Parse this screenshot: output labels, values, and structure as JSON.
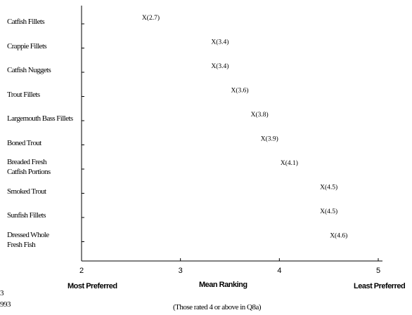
{
  "chart_data": {
    "type": "scatter",
    "categories": [
      "Catfish Fillets",
      "Crappie Fillets",
      "Catfish Nuggets",
      "Trout Fillets",
      "Largemouth Bass Fillets",
      "Boned Trout",
      "Breaded Fresh\nCatfish Portions",
      "Smoked Trout",
      "Sunfish Fillets",
      "Dressed Whole\nFresh Fish"
    ],
    "values": [
      2.7,
      3.4,
      3.4,
      3.6,
      3.8,
      3.9,
      4.1,
      4.5,
      4.5,
      4.6
    ],
    "point_labels": [
      "X(2.7)",
      "X(3.4)",
      "X(3.4)",
      "X(3.6)",
      "X(3.8)",
      "X(3.9)",
      "X(4.1)",
      "X(4.5)",
      "X(4.5)",
      "X(4.6)"
    ],
    "x_ticks": [
      "2",
      "3",
      "4",
      "5"
    ],
    "xlim": [
      2,
      5
    ],
    "xlabel": "Mean Ranking",
    "x_left_label": "Most Preferred",
    "x_right_label": "Least Preferred",
    "subtitle": "(Those rated 4 or above in Q8a)",
    "corner_labels": [
      "3",
      "993"
    ],
    "grid": false
  }
}
